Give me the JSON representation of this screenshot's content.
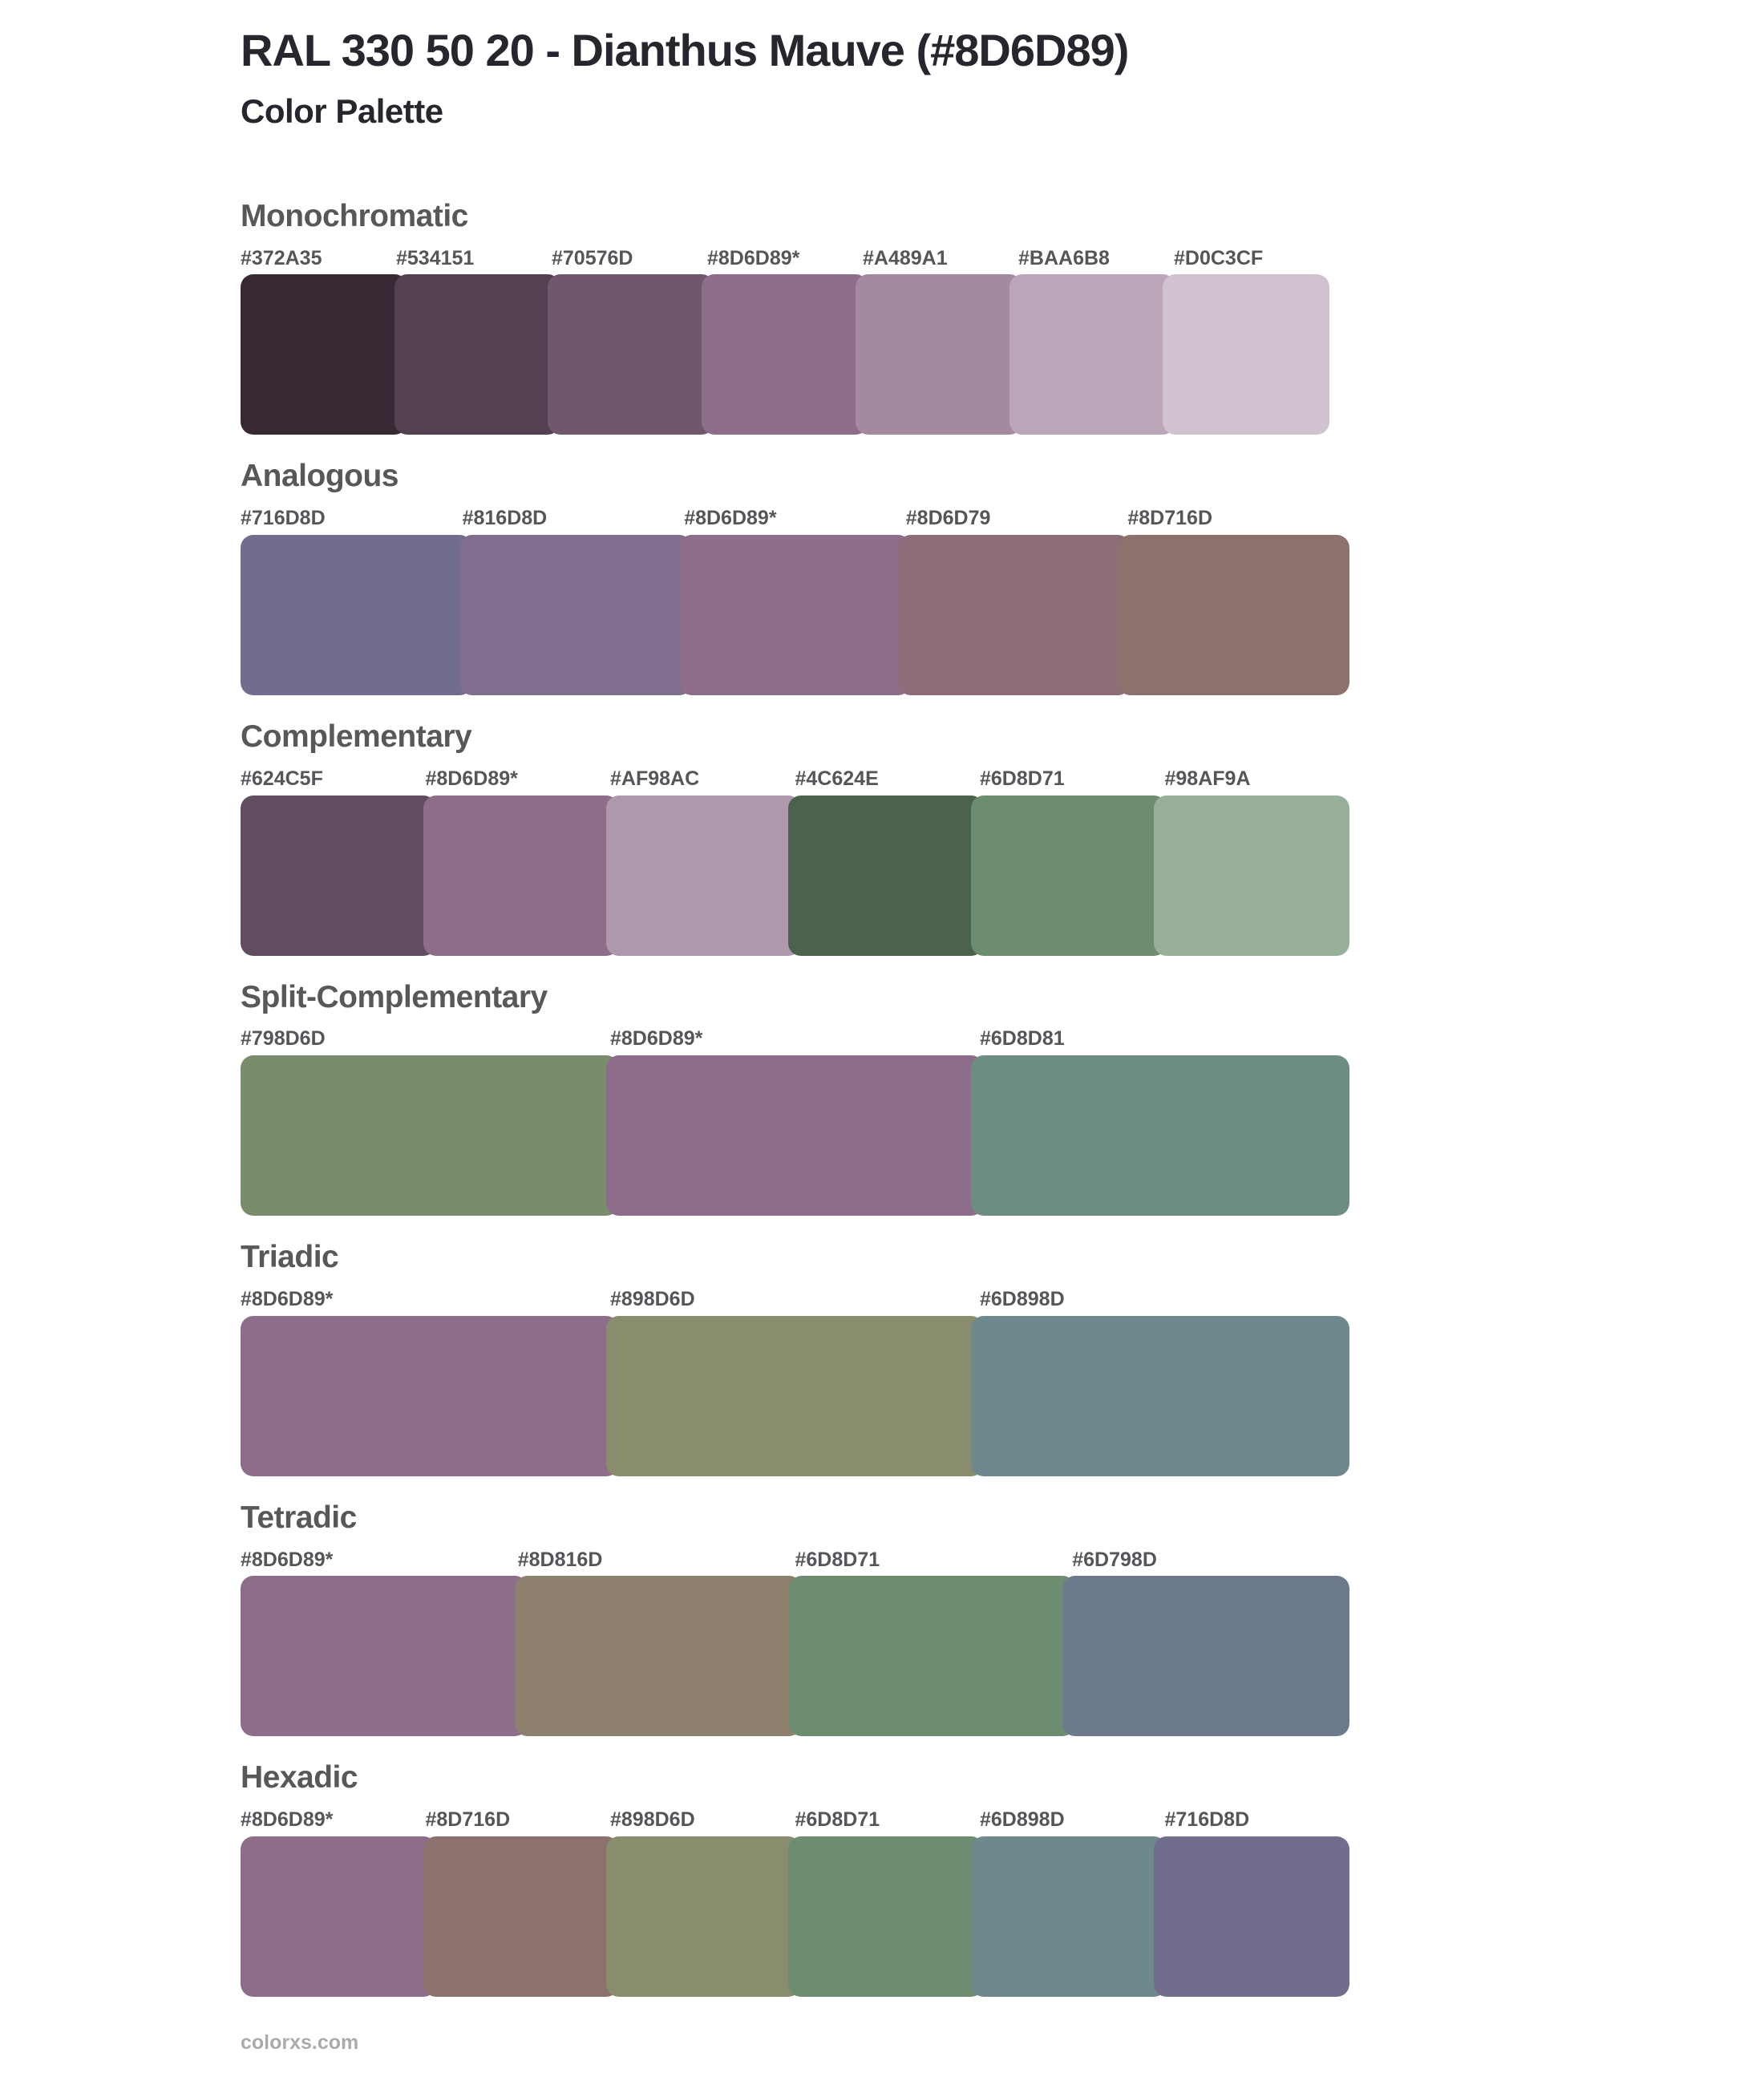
{
  "page": {
    "title": "RAL 330 50 20 - Dianthus Mauve (#8D6D89)",
    "subtitle": "Color Palette",
    "footer_link": "colorxs.com",
    "base_color_hex": "#8D6D89"
  },
  "text_colors": {
    "title": "#26262E",
    "heading": "#58585B",
    "hex_label": "#55555A",
    "footer": "#A9ABAE"
  },
  "sections": [
    {
      "name": "Monochromatic",
      "swatches": [
        {
          "label": "#372A35",
          "color": "#372A35"
        },
        {
          "label": "#534151",
          "color": "#534151"
        },
        {
          "label": "#70576D",
          "color": "#70576D"
        },
        {
          "label": "#8D6D89*",
          "color": "#8D6D89"
        },
        {
          "label": "#A489A1",
          "color": "#A489A1"
        },
        {
          "label": "#BAA6B8",
          "color": "#BAA6B8"
        },
        {
          "label": "#D0C3CF",
          "color": "#D0C3CF"
        }
      ]
    },
    {
      "name": "Analogous",
      "swatches": [
        {
          "label": "#716D8D",
          "color": "#716D8D"
        },
        {
          "label": "#816D8D",
          "color": "#816D8D"
        },
        {
          "label": "#8D6D89*",
          "color": "#8D6D89"
        },
        {
          "label": "#8D6D79",
          "color": "#8D6D79"
        },
        {
          "label": "#8D716D",
          "color": "#8D716D"
        }
      ]
    },
    {
      "name": "Complementary",
      "swatches": [
        {
          "label": "#624C5F",
          "color": "#624C5F"
        },
        {
          "label": "#8D6D89*",
          "color": "#8D6D89"
        },
        {
          "label": "#AF98AC",
          "color": "#AF98AC"
        },
        {
          "label": "#4C624E",
          "color": "#4C624E"
        },
        {
          "label": "#6D8D71",
          "color": "#6D8D71"
        },
        {
          "label": "#98AF9A",
          "color": "#98AF9A"
        }
      ]
    },
    {
      "name": "Split-Complementary",
      "swatches": [
        {
          "label": "#798D6D",
          "color": "#798D6D"
        },
        {
          "label": "#8D6D89*",
          "color": "#8D6D89"
        },
        {
          "label": "#6D8D81",
          "color": "#6D8D81"
        }
      ]
    },
    {
      "name": "Triadic",
      "swatches": [
        {
          "label": "#8D6D89*",
          "color": "#8D6D89"
        },
        {
          "label": "#898D6D",
          "color": "#898D6D"
        },
        {
          "label": "#6D898D",
          "color": "#6D898D"
        }
      ]
    },
    {
      "name": "Tetradic",
      "swatches": [
        {
          "label": "#8D6D89*",
          "color": "#8D6D89"
        },
        {
          "label": "#8D816D",
          "color": "#8D816D"
        },
        {
          "label": "#6D8D71",
          "color": "#6D8D71"
        },
        {
          "label": "#6D798D",
          "color": "#6D798D"
        }
      ]
    },
    {
      "name": "Hexadic",
      "swatches": [
        {
          "label": "#8D6D89*",
          "color": "#8D6D89"
        },
        {
          "label": "#8D716D",
          "color": "#8D716D"
        },
        {
          "label": "#898D6D",
          "color": "#898D6D"
        },
        {
          "label": "#6D8D71",
          "color": "#6D8D71"
        },
        {
          "label": "#6D898D",
          "color": "#6D898D"
        },
        {
          "label": "#716D8D",
          "color": "#716D8D"
        }
      ]
    }
  ]
}
